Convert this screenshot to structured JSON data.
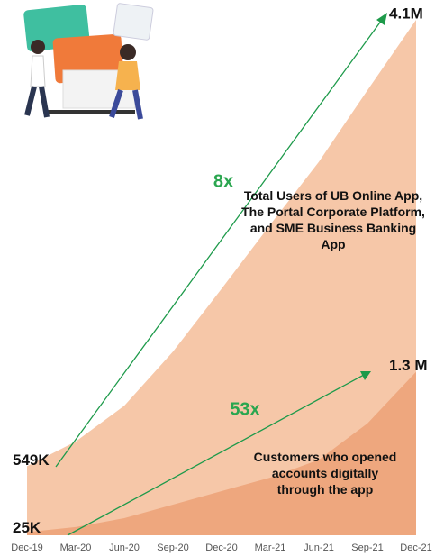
{
  "chart_data": {
    "type": "area",
    "categories": [
      "Dec-19",
      "Mar-20",
      "Jun-20",
      "Sep-20",
      "Dec-20",
      "Mar-21",
      "Jun-21",
      "Sep-21",
      "Dec-21"
    ],
    "series": [
      {
        "name": "Total Users of UB Online App, The Portal Corporate Platform, and SME Business Banking App",
        "color": "#f6c7a8",
        "values": [
          549000,
          745000,
          1030000,
          1460000,
          1960000,
          2470000,
          2970000,
          3540000,
          4100000
        ],
        "value_labels": [
          "549K",
          null,
          null,
          null,
          null,
          null,
          null,
          null,
          "4.1M"
        ]
      },
      {
        "name": "Customers who opened accounts digitally through the app",
        "color": "#eea77e",
        "values": [
          25000,
          65000,
          136000,
          244000,
          351000,
          459000,
          600000,
          890000,
          1300000
        ],
        "value_labels": [
          "25K",
          null,
          null,
          null,
          null,
          null,
          null,
          null,
          "1.3 M"
        ]
      }
    ],
    "annotations": [
      "8x",
      "53x"
    ],
    "ylim": [
      0,
      4200000
    ]
  }
}
